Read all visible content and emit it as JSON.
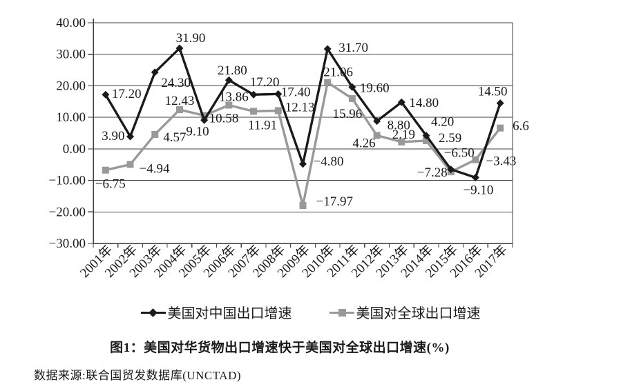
{
  "chart_data": {
    "type": "line",
    "title": "图1：美国对华货物出口增速快于美国对全球出口增速(%)",
    "source": "数据来源:联合国贸发数据库(UNCTAD)",
    "grid": true,
    "legend_position": "bottom",
    "categories": [
      "2001年",
      "2002年",
      "2003年",
      "2004年",
      "2005年",
      "2006年",
      "2007年",
      "2008年",
      "2009年",
      "2010年",
      "2011年",
      "2012年",
      "2013年",
      "2014年",
      "2015年",
      "2016年",
      "2017年"
    ],
    "y_axis": {
      "min": -30,
      "max": 40,
      "step": 10,
      "tick_labels": [
        "40.00",
        "30.00",
        "20.00",
        "10.00",
        "0.00",
        "−10.00",
        "−20.00",
        "−30.00"
      ]
    },
    "series": [
      {
        "name": "美国对中国出口增速",
        "color": "#1a1a1a",
        "marker": "diamond",
        "values": [
          17.2,
          3.9,
          24.3,
          31.9,
          9.1,
          21.8,
          17.2,
          17.4,
          -4.8,
          31.7,
          19.6,
          8.8,
          14.8,
          4.2,
          -6.5,
          -9.1,
          14.5
        ],
        "labels": [
          "17.20",
          "3.90",
          "24.30",
          "31.90",
          "9.10",
          "21.80",
          "17.20",
          "17.40",
          "−4.80",
          "31.70",
          "19.60",
          "8.80",
          "14.80",
          "4.20",
          "−6.50",
          "−9.10",
          "14.50"
        ],
        "label_pos": [
          [
            9,
            5,
            "start"
          ],
          [
            -8,
            5,
            "end"
          ],
          [
            9,
            21,
            "start"
          ],
          [
            16,
            -9,
            "middle"
          ],
          [
            7,
            22,
            "end"
          ],
          [
            5,
            -8,
            "middle"
          ],
          [
            16,
            -12,
            "middle"
          ],
          [
            4,
            3,
            "start"
          ],
          [
            15,
            2,
            "start"
          ],
          [
            16,
            4,
            "start"
          ],
          [
            11,
            7,
            "start"
          ],
          [
            15,
            12,
            "start"
          ],
          [
            11,
            7,
            "start"
          ],
          [
            7,
            -14,
            "start"
          ],
          [
            -10,
            -18,
            "start"
          ],
          [
            4,
            24,
            "middle"
          ],
          [
            -11,
            -11,
            "middle"
          ]
        ]
      },
      {
        "name": "美国对全球出口增速",
        "color": "#999999",
        "marker": "square",
        "values": [
          -6.75,
          -4.94,
          4.57,
          12.43,
          10.58,
          13.86,
          11.91,
          12.13,
          -17.97,
          21.06,
          15.96,
          4.26,
          2.19,
          2.59,
          -7.28,
          -3.43,
          6.6
        ],
        "labels": [
          "−6.75",
          "−4.94",
          "4.57",
          "12.43",
          "10.58",
          "13.86",
          "11.91",
          "12.13",
          "−17.97",
          "21.06",
          "15.96",
          "4.26",
          "2.19",
          "2.59",
          "−7.28",
          "−3.43",
          "6.6"
        ],
        "label_pos": [
          [
            -15,
            26,
            "start"
          ],
          [
            13,
            12,
            "start"
          ],
          [
            12,
            10,
            "start"
          ],
          [
            0,
            -7,
            "middle"
          ],
          [
            7,
            10,
            "start"
          ],
          [
            7,
            -6,
            "middle"
          ],
          [
            13,
            26,
            "middle"
          ],
          [
            10,
            1,
            "start"
          ],
          [
            19,
            0,
            "start"
          ],
          [
            -6,
            -9,
            "start"
          ],
          [
            -7,
            28,
            "middle"
          ],
          [
            -2,
            17,
            "end"
          ],
          [
            3,
            -5,
            "middle"
          ],
          [
            18,
            2,
            "start"
          ],
          [
            -5,
            7,
            "end"
          ],
          [
            15,
            8,
            "start"
          ],
          [
            18,
            3,
            "start"
          ]
        ]
      }
    ]
  }
}
